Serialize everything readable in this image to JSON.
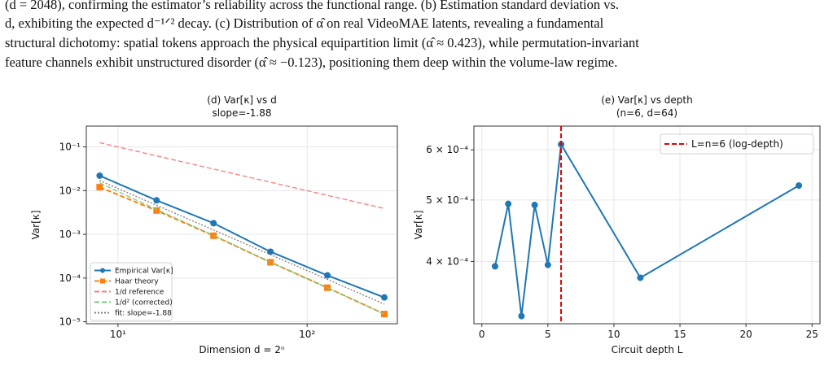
{
  "text": {
    "lines": [
      "(d = 2048), confirming the estimator’s reliability across the functional range. (b) Estimation standard deviation vs.",
      "d, exhibiting the expected d⁻¹ᐟ² decay. (c) Distribution of α̂ on real VideoMAE latents, revealing a fundamental",
      "structural dichotomy: spatial tokens approach the physical equipartition limit (α̂ ≈ 0.423), while permutation-invariant",
      "feature channels exhibit unstructured disorder (α̂ ≈ −0.123), positioning them deep within the volume-law regime."
    ]
  },
  "chart_data": [
    {
      "type": "line",
      "title": "(d) Var[κ] vs d",
      "subtitle": "slope=-1.88",
      "x_label": "Dimension d = 2ⁿ",
      "y_label": "Var[κ]",
      "xlog": true,
      "ylog": true,
      "grid": true,
      "legend": "lower-left",
      "x": [
        8,
        16,
        32,
        64,
        128,
        256
      ],
      "xlim": [
        6.8,
        300
      ],
      "ylim": [
        9e-06,
        0.3
      ],
      "xticks": [
        {
          "value": 10,
          "label": "10¹"
        },
        {
          "value": 100,
          "label": "10²"
        }
      ],
      "yticks": [
        {
          "value": 1e-05,
          "label": "10⁻⁵"
        },
        {
          "value": 0.0001,
          "label": "10⁻⁴"
        },
        {
          "value": 0.001,
          "label": "10⁻³"
        },
        {
          "value": 0.01,
          "label": "10⁻²"
        },
        {
          "value": 0.1,
          "label": "10⁻¹"
        }
      ],
      "series": [
        {
          "name": "Empirical Var[κ]",
          "color": "#1f77b4",
          "marker": "circle",
          "dash": "solid",
          "values": [
            0.022,
            0.006,
            0.0018,
            0.0004,
            0.000115,
            3.6e-05
          ]
        },
        {
          "name": "Haar theory",
          "color": "#ff7f0e",
          "marker": "square",
          "dash": "dashed",
          "values": [
            0.012,
            0.0035,
            0.00093,
            0.00023,
            6e-05,
            1.5e-05
          ]
        },
        {
          "name": "1/d reference",
          "color": "#f77c7c",
          "marker": "none",
          "dash": "dashed",
          "values": [
            0.125,
            0.0625,
            0.03125,
            0.0156,
            0.0078,
            0.0039
          ]
        },
        {
          "name": "1/d² (corrected)",
          "color": "#7fc97f",
          "marker": "none",
          "dash": "dashed",
          "values": [
            0.015,
            0.0037,
            0.00095,
            0.00023,
            6e-05,
            1.5e-05
          ]
        },
        {
          "name": "fit: slope=-1.88",
          "color": "#7f7f7f",
          "marker": "none",
          "dash": "dotted",
          "values": [
            0.017,
            0.00462,
            0.00126,
            0.000342,
            9.31e-05,
            2.53e-05
          ]
        }
      ]
    },
    {
      "type": "line",
      "title": "(e) Var[κ] vs depth",
      "subtitle": "(n=6, d=64)",
      "x_label": "Circuit depth L",
      "y_label": "Var[κ]",
      "xlog": false,
      "ylog": true,
      "grid": true,
      "legend": "upper-right",
      "x": [
        1,
        2,
        3,
        4,
        5,
        6,
        12,
        24
      ],
      "xlim": [
        -0.6,
        25.6
      ],
      "ylim": [
        0.000319,
        0.000654
      ],
      "xticks": [
        0,
        5,
        10,
        15,
        20,
        25
      ],
      "yticks": [
        {
          "value": 0.0004,
          "label": "4 × 10⁻⁴"
        },
        {
          "value": 0.0005,
          "label": "5 × 10⁻⁴"
        },
        {
          "value": 0.0006,
          "label": "6 × 10⁻⁴"
        }
      ],
      "series": [
        {
          "name": null,
          "color": "#1f77b4",
          "marker": "circle",
          "dash": "solid",
          "values": [
            0.000393,
            0.000493,
            0.000328,
            0.000491,
            0.000395,
            0.000612,
            0.000377,
            0.000527
          ]
        }
      ],
      "vline": {
        "x": 6,
        "color": "#e00000",
        "label": "L=n=6 (log-depth)"
      }
    }
  ]
}
